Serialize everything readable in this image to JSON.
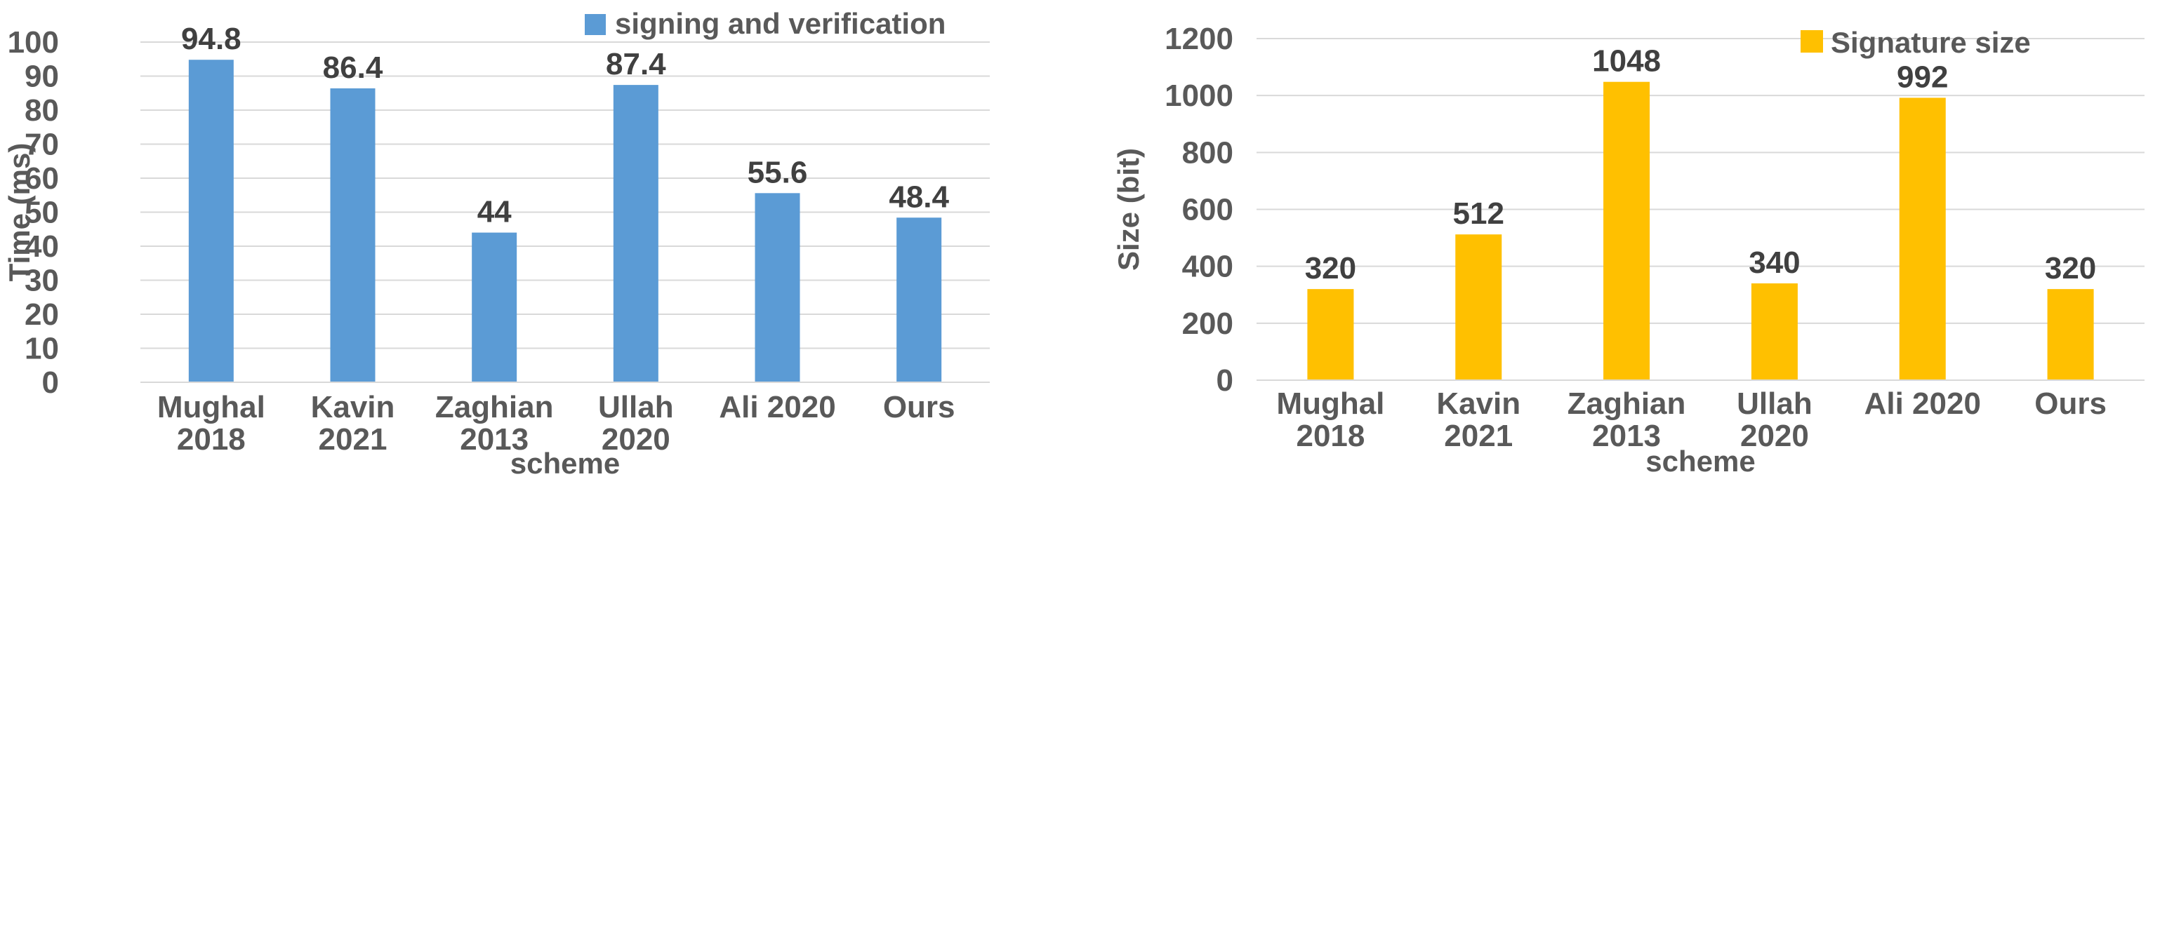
{
  "chart_data": [
    {
      "type": "bar",
      "categories": [
        [
          "Mughal",
          "2018"
        ],
        [
          "Kavin",
          "2021"
        ],
        [
          "Zaghian",
          "2013"
        ],
        [
          "Ullah",
          "2020"
        ],
        [
          "Ali 2020"
        ],
        [
          "Ours"
        ]
      ],
      "series": [
        {
          "name": "signing and verification",
          "values": [
            94.8,
            86.4,
            44,
            87.4,
            55.6,
            48.4
          ],
          "labels": [
            "94.8",
            "86.4",
            "44",
            "87.4",
            "55.6",
            "48.4"
          ],
          "color": "#5B9BD5"
        }
      ],
      "yticks": [
        0,
        10,
        20,
        30,
        40,
        50,
        60,
        70,
        80,
        90,
        100
      ],
      "ylim": [
        0,
        100
      ],
      "xlabel": "scheme",
      "ylabel": "Time (ms)",
      "grid": true,
      "legend": "top-right"
    },
    {
      "type": "bar",
      "categories": [
        [
          "Mughal",
          "2018"
        ],
        [
          "Kavin",
          "2021"
        ],
        [
          "Zaghian",
          "2013"
        ],
        [
          "Ullah",
          "2020"
        ],
        [
          "Ali 2020"
        ],
        [
          "Ours"
        ]
      ],
      "series": [
        {
          "name": "Signature size",
          "values": [
            320,
            512,
            1048,
            340,
            992,
            320
          ],
          "labels": [
            "320",
            "512",
            "1048",
            "340",
            "992",
            "320"
          ],
          "color": "#FFC000"
        }
      ],
      "yticks": [
        0,
        200,
        400,
        600,
        800,
        1000,
        1200
      ],
      "ylim": [
        0,
        1200
      ],
      "xlabel": "scheme",
      "ylabel": "Size (bit)",
      "grid": true,
      "legend": "top-right"
    }
  ]
}
